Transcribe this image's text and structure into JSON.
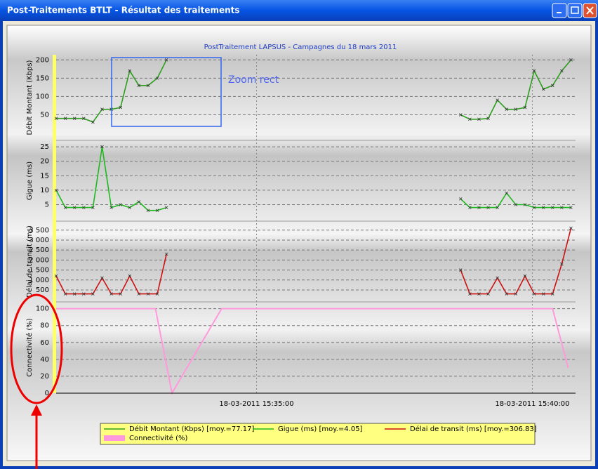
{
  "window": {
    "title": "Post-Traitements BTLT - Résultat des traitements"
  },
  "chart_data": [
    {
      "type": "line",
      "title": "PostTraitement LAPSUS - Campagnes du 18 mars 2011",
      "annotation": "Zoom rect",
      "ylabel": "Débit Montant (Kbps)",
      "x": [
        "2011-03-18T15:31:22",
        "2011-03-18T15:31:32",
        "2011-03-18T15:31:42",
        "2011-03-18T15:31:52",
        "2011-03-18T15:32:02",
        "2011-03-18T15:32:12",
        "2011-03-18T15:32:22",
        "2011-03-18T15:32:32",
        "2011-03-18T15:32:42",
        "2011-03-18T15:32:52",
        "2011-03-18T15:33:02",
        "2011-03-18T15:33:12",
        "2011-03-18T15:33:22",
        "2011-03-18T15:36:00",
        "2011-03-18T15:38:42",
        "2011-03-18T15:38:52",
        "2011-03-18T15:39:02",
        "2011-03-18T15:39:12",
        "2011-03-18T15:39:22",
        "2011-03-18T15:39:32",
        "2011-03-18T15:39:42",
        "2011-03-18T15:39:52",
        "2011-03-18T15:40:02",
        "2011-03-18T15:40:12",
        "2011-03-18T15:40:22",
        "2011-03-18T15:40:32",
        "2011-03-18T15:40:42"
      ],
      "ylim": [
        -20,
        214
      ],
      "yticks": [
        50,
        100,
        150,
        200
      ],
      "grid": true,
      "series": [
        {
          "name": "Débit Montant (Kbps) [moy.=77.17]",
          "color": "#2e9e1e",
          "values": [
            40,
            40,
            40,
            40,
            30,
            65,
            65,
            70,
            170,
            130,
            130,
            150,
            200,
            null,
            50,
            38,
            38,
            40,
            90,
            65,
            65,
            70,
            170,
            120,
            130,
            170,
            200
          ]
        }
      ]
    },
    {
      "type": "line",
      "ylabel": "Gigue (ms)",
      "x": [
        "2011-03-18T15:31:22",
        "2011-03-18T15:31:32",
        "2011-03-18T15:31:42",
        "2011-03-18T15:31:52",
        "2011-03-18T15:32:02",
        "2011-03-18T15:32:12",
        "2011-03-18T15:32:22",
        "2011-03-18T15:32:32",
        "2011-03-18T15:32:42",
        "2011-03-18T15:32:52",
        "2011-03-18T15:33:02",
        "2011-03-18T15:33:12",
        "2011-03-18T15:33:22",
        "2011-03-18T15:36:00",
        "2011-03-18T15:38:42",
        "2011-03-18T15:38:52",
        "2011-03-18T15:39:02",
        "2011-03-18T15:39:12",
        "2011-03-18T15:39:22",
        "2011-03-18T15:39:32",
        "2011-03-18T15:39:42",
        "2011-03-18T15:39:52",
        "2011-03-18T15:40:02",
        "2011-03-18T15:40:12",
        "2011-03-18T15:40:22",
        "2011-03-18T15:40:32",
        "2011-03-18T15:40:42"
      ],
      "ylim": [
        -0.7,
        27.2
      ],
      "yticks": [
        5,
        10,
        15,
        20,
        25
      ],
      "grid": true,
      "series": [
        {
          "name": "Gigue (ms) [moy.=4.05]",
          "color": "#1fb81f",
          "values": [
            10,
            4,
            4,
            4,
            4,
            25,
            4,
            5,
            4,
            6,
            3,
            3,
            4,
            null,
            7,
            4,
            4,
            4,
            4,
            9,
            5,
            5,
            4,
            4,
            4,
            4,
            4
          ]
        }
      ]
    },
    {
      "type": "line",
      "ylabel": "Délai de transit (ms)",
      "x": [
        "2011-03-18T15:31:22",
        "2011-03-18T15:31:32",
        "2011-03-18T15:31:42",
        "2011-03-18T15:31:52",
        "2011-03-18T15:32:02",
        "2011-03-18T15:32:12",
        "2011-03-18T15:32:22",
        "2011-03-18T15:32:32",
        "2011-03-18T15:32:42",
        "2011-03-18T15:32:52",
        "2011-03-18T15:33:02",
        "2011-03-18T15:33:12",
        "2011-03-18T15:33:22",
        "2011-03-18T15:36:00",
        "2011-03-18T15:38:42",
        "2011-03-18T15:38:52",
        "2011-03-18T15:39:02",
        "2011-03-18T15:39:12",
        "2011-03-18T15:39:22",
        "2011-03-18T15:39:32",
        "2011-03-18T15:39:42",
        "2011-03-18T15:39:52",
        "2011-03-18T15:40:02",
        "2011-03-18T15:40:12",
        "2011-03-18T15:40:22",
        "2011-03-18T15:40:32",
        "2011-03-18T15:40:42"
      ],
      "ylim": [
        -100,
        3950
      ],
      "yticks": [
        500,
        {
          "value": 1000,
          "label": "1 000"
        },
        {
          "value": 1500,
          "label": "1 500"
        },
        {
          "value": 2000,
          "label": "2 000"
        },
        {
          "value": 2500,
          "label": "2 500"
        },
        {
          "value": 3000,
          "label": "3 000"
        },
        {
          "value": 3500,
          "label": "3 500"
        }
      ],
      "grid": true,
      "series": [
        {
          "name": "Délai de transit (ms) [moy.=306.83]",
          "color": "#cc1111",
          "values": [
            1200,
            300,
            300,
            300,
            300,
            1100,
            300,
            300,
            1200,
            300,
            300,
            300,
            2300,
            null,
            1500,
            300,
            300,
            300,
            1100,
            300,
            300,
            1200,
            300,
            300,
            300,
            1800,
            3600
          ]
        }
      ]
    },
    {
      "type": "line",
      "ylabel": "Connectivité (%)",
      "x": [
        "2011-03-18T15:31:22",
        "2011-03-18T15:33:10",
        "2011-03-18T15:33:28",
        "2011-03-18T15:34:22",
        "2011-03-18T15:40:22",
        "2011-03-18T15:40:39"
      ],
      "xlim": [
        "2011-03-18T15:31:22",
        "2011-03-18T15:40:47"
      ],
      "xticks": [
        {
          "value": "2011-03-18T15:35:00",
          "label": "18-03-2011 15:35:00"
        },
        {
          "value": "2011-03-18T15:40:00",
          "label": "18-03-2011 15:40:00"
        }
      ],
      "ylim": [
        0,
        108
      ],
      "yticks": [
        0,
        20,
        40,
        60,
        80,
        100
      ],
      "grid": true,
      "series": [
        {
          "name": "Connectivité (%)",
          "color": "#ff99dd",
          "values": [
            100,
            100,
            0,
            100,
            100,
            30
          ]
        }
      ]
    }
  ],
  "legend": {
    "position": "bottom"
  }
}
